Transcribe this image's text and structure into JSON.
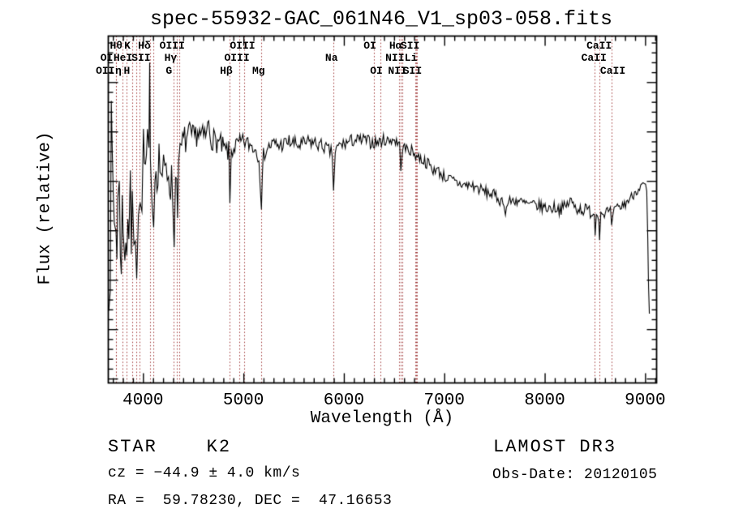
{
  "figure": {
    "title": "spec-55932-GAC_061N46_V1_sp03-058.fits",
    "xlabel": "Wavelength (Å)",
    "ylabel": "Flux (relative)"
  },
  "annotations": {
    "class_label": "STAR    K2",
    "cz_label": "cz = −44.9 ± 4.0 km/s",
    "radec_label": "RA =  59.78230, DEC =  47.16653",
    "survey_label": "LAMOST DR3",
    "obsdate_label": "Obs-Date: 20120105"
  },
  "chart_data": {
    "type": "line",
    "title": "spec-55932-GAC_061N46_V1_sp03-058.fits",
    "xlabel": "Wavelength (Å)",
    "ylabel": "Flux (relative)",
    "xlim": [
      3650,
      9110
    ],
    "ylim": [
      -54,
      297
    ],
    "xticks": [
      4000,
      5000,
      6000,
      7000,
      8000,
      9000
    ],
    "yticks": [
      -50,
      0,
      50,
      100,
      150,
      200,
      250
    ],
    "x_minor_step": 100,
    "y_minor_step": 10,
    "grid": false,
    "legend": false,
    "spectrum_color": "#000000",
    "line_marker_color": "#9e3434",
    "noise_seed": 7,
    "spectral_lines": [
      {
        "label": "Hθ",
        "wavelength": 3798,
        "row": 1,
        "dx": -8
      },
      {
        "label": "K",
        "wavelength": 3933,
        "row": 1,
        "dx": -11
      },
      {
        "label": "Hδ",
        "wavelength": 4102,
        "row": 1,
        "dx": -11
      },
      {
        "label": "OIII",
        "wavelength": 4363,
        "row": 1,
        "dx": -9
      },
      {
        "label": "OIII",
        "wavelength": 5007,
        "row": 1,
        "dx": -2
      },
      {
        "label": "OI",
        "wavelength": 6300,
        "row": 1,
        "dx": -5
      },
      {
        "label": "Hα",
        "wavelength": 6563,
        "row": 1,
        "dx": -6
      },
      {
        "label": "SII",
        "wavelength": 6716,
        "row": 1,
        "dx": -7
      },
      {
        "label": "CaII",
        "wavelength": 8542,
        "row": 1,
        "dx": 0
      },
      {
        "label": "OI",
        "wavelength": 3727,
        "row": 2,
        "dx": -11
      },
      {
        "label": "HeI",
        "wavelength": 3889,
        "row": 2,
        "dx": -11
      },
      {
        "label": "SII",
        "wavelength": 4069,
        "row": 2,
        "dx": -11
      },
      {
        "label": "Hγ",
        "wavelength": 4340,
        "row": 2,
        "dx": -8
      },
      {
        "label": "OIII",
        "wavelength": 4959,
        "row": 2,
        "dx": -3
      },
      {
        "label": "Na",
        "wavelength": 5893,
        "row": 2,
        "dx": -2
      },
      {
        "label": "NII",
        "wavelength": 6548,
        "row": 2,
        "dx": -5
      },
      {
        "label": "Li",
        "wavelength": 6708,
        "row": 2,
        "dx": -5
      },
      {
        "label": "CaII",
        "wavelength": 8498,
        "row": 2,
        "dx": -1
      },
      {
        "label": "OII",
        "wavelength": 3729,
        "row": 3,
        "dx": -13
      },
      {
        "label": "η",
        "wavelength": 3835,
        "row": 3,
        "dx": -10
      },
      {
        "label": "H",
        "wavelength": 3968,
        "row": 3,
        "dx": -16
      },
      {
        "label": "G",
        "wavelength": 4306,
        "row": 3,
        "dx": -6
      },
      {
        "label": "Hβ",
        "wavelength": 4861,
        "row": 3,
        "dx": -4
      },
      {
        "label": "Mg",
        "wavelength": 5175,
        "row": 3,
        "dx": -3
      },
      {
        "label": "OI",
        "wavelength": 6364,
        "row": 3,
        "dx": -5
      },
      {
        "label": "NII",
        "wavelength": 6583,
        "row": 3,
        "dx": -6
      },
      {
        "label": "SII",
        "wavelength": 6731,
        "row": 3,
        "dx": -6
      },
      {
        "label": "CaII",
        "wavelength": 8662,
        "row": 3,
        "dx": 2
      }
    ],
    "continuum": [
      [
        3655,
        125
      ],
      [
        3670,
        130
      ],
      [
        3690,
        140
      ],
      [
        3710,
        125
      ],
      [
        3727,
        105
      ],
      [
        3745,
        125
      ],
      [
        3760,
        115
      ],
      [
        3780,
        105
      ],
      [
        3798,
        95
      ],
      [
        3815,
        108
      ],
      [
        3835,
        100
      ],
      [
        3855,
        115
      ],
      [
        3870,
        108
      ],
      [
        3889,
        100
      ],
      [
        3905,
        118
      ],
      [
        3920,
        125
      ],
      [
        3933,
        85
      ],
      [
        3950,
        135
      ],
      [
        3968,
        105
      ],
      [
        3985,
        155
      ],
      [
        4000,
        170
      ],
      [
        4020,
        158
      ],
      [
        4040,
        168
      ],
      [
        4055,
        175
      ],
      [
        4062,
        240
      ],
      [
        4069,
        150
      ],
      [
        4085,
        160
      ],
      [
        4102,
        125
      ],
      [
        4115,
        160
      ],
      [
        4135,
        170
      ],
      [
        4155,
        172
      ],
      [
        4175,
        162
      ],
      [
        4200,
        152
      ],
      [
        4225,
        158
      ],
      [
        4250,
        162
      ],
      [
        4270,
        150
      ],
      [
        4290,
        142
      ],
      [
        4306,
        98
      ],
      [
        4320,
        148
      ],
      [
        4332,
        160
      ],
      [
        4340,
        132
      ],
      [
        4350,
        162
      ],
      [
        4365,
        172
      ],
      [
        4380,
        185
      ],
      [
        4400,
        190
      ],
      [
        4430,
        193
      ],
      [
        4460,
        196
      ],
      [
        4500,
        193
      ],
      [
        4540,
        200
      ],
      [
        4570,
        196
      ],
      [
        4600,
        194
      ],
      [
        4630,
        198
      ],
      [
        4650,
        210
      ],
      [
        4670,
        195
      ],
      [
        4700,
        192
      ],
      [
        4730,
        190
      ],
      [
        4760,
        188
      ],
      [
        4790,
        184
      ],
      [
        4820,
        180
      ],
      [
        4850,
        180
      ],
      [
        4861,
        128
      ],
      [
        4875,
        180
      ],
      [
        4900,
        185
      ],
      [
        4930,
        186
      ],
      [
        4960,
        188
      ],
      [
        5000,
        190
      ],
      [
        5040,
        188
      ],
      [
        5080,
        186
      ],
      [
        5120,
        182
      ],
      [
        5150,
        176
      ],
      [
        5175,
        128
      ],
      [
        5195,
        176
      ],
      [
        5220,
        182
      ],
      [
        5260,
        186
      ],
      [
        5300,
        188
      ],
      [
        5350,
        186
      ],
      [
        5400,
        188
      ],
      [
        5450,
        190
      ],
      [
        5500,
        188
      ],
      [
        5550,
        186
      ],
      [
        5600,
        188
      ],
      [
        5650,
        190
      ],
      [
        5700,
        189
      ],
      [
        5750,
        187
      ],
      [
        5800,
        185
      ],
      [
        5845,
        181
      ],
      [
        5880,
        178
      ],
      [
        5893,
        140
      ],
      [
        5910,
        180
      ],
      [
        5950,
        186
      ],
      [
        6000,
        188
      ],
      [
        6050,
        190
      ],
      [
        6100,
        192
      ],
      [
        6150,
        191
      ],
      [
        6200,
        192
      ],
      [
        6250,
        190
      ],
      [
        6300,
        189
      ],
      [
        6350,
        190
      ],
      [
        6400,
        192
      ],
      [
        6440,
        191
      ],
      [
        6480,
        193
      ],
      [
        6520,
        190
      ],
      [
        6550,
        186
      ],
      [
        6563,
        166
      ],
      [
        6580,
        184
      ],
      [
        6610,
        183
      ],
      [
        6650,
        182
      ],
      [
        6690,
        179
      ],
      [
        6720,
        176
      ],
      [
        6750,
        174
      ],
      [
        6790,
        171
      ],
      [
        6830,
        168
      ],
      [
        6860,
        166
      ],
      [
        6875,
        158
      ],
      [
        6895,
        164
      ],
      [
        6930,
        161
      ],
      [
        6970,
        157
      ],
      [
        7010,
        154
      ],
      [
        7050,
        152
      ],
      [
        7090,
        150
      ],
      [
        7130,
        148
      ],
      [
        7170,
        147
      ],
      [
        7210,
        146
      ],
      [
        7250,
        146
      ],
      [
        7290,
        145
      ],
      [
        7330,
        143
      ],
      [
        7370,
        141
      ],
      [
        7410,
        139
      ],
      [
        7450,
        138
      ],
      [
        7490,
        136
      ],
      [
        7530,
        133
      ],
      [
        7560,
        130
      ],
      [
        7590,
        131
      ],
      [
        7605,
        116
      ],
      [
        7625,
        128
      ],
      [
        7660,
        130
      ],
      [
        7700,
        131
      ],
      [
        7740,
        130
      ],
      [
        7780,
        128
      ],
      [
        7820,
        127
      ],
      [
        7860,
        126
      ],
      [
        7900,
        126
      ],
      [
        7940,
        125
      ],
      [
        7980,
        124
      ],
      [
        8020,
        123
      ],
      [
        8060,
        123
      ],
      [
        8100,
        124
      ],
      [
        8140,
        122
      ],
      [
        8180,
        123
      ],
      [
        8220,
        126
      ],
      [
        8250,
        131
      ],
      [
        8280,
        126
      ],
      [
        8320,
        123
      ],
      [
        8360,
        122
      ],
      [
        8400,
        121
      ],
      [
        8440,
        120
      ],
      [
        8470,
        119
      ],
      [
        8490,
        117
      ],
      [
        8498,
        100
      ],
      [
        8510,
        117
      ],
      [
        8535,
        116
      ],
      [
        8542,
        97
      ],
      [
        8555,
        117
      ],
      [
        8580,
        119
      ],
      [
        8620,
        119
      ],
      [
        8650,
        118
      ],
      [
        8662,
        100
      ],
      [
        8675,
        118
      ],
      [
        8700,
        121
      ],
      [
        8740,
        123
      ],
      [
        8780,
        126
      ],
      [
        8820,
        130
      ],
      [
        8860,
        134
      ],
      [
        8900,
        140
      ],
      [
        8940,
        144
      ],
      [
        8975,
        146
      ],
      [
        9000,
        145
      ],
      [
        9012,
        140
      ],
      [
        9022,
        90
      ],
      [
        9030,
        40
      ],
      [
        9038,
        16
      ]
    ],
    "noise_profile": [
      [
        3650,
        110
      ],
      [
        3700,
        95
      ],
      [
        3750,
        80
      ],
      [
        3800,
        65
      ],
      [
        3850,
        58
      ],
      [
        3900,
        52
      ],
      [
        3950,
        46
      ],
      [
        4000,
        40
      ],
      [
        4060,
        36
      ],
      [
        4120,
        32
      ],
      [
        4200,
        28
      ],
      [
        4300,
        24
      ],
      [
        4380,
        18
      ],
      [
        4450,
        15
      ],
      [
        4550,
        13
      ],
      [
        4700,
        12
      ],
      [
        4850,
        11
      ],
      [
        5000,
        9
      ],
      [
        5200,
        8
      ],
      [
        5500,
        8
      ],
      [
        5800,
        7
      ],
      [
        6100,
        7
      ],
      [
        6500,
        6
      ],
      [
        7000,
        6
      ],
      [
        7500,
        6
      ],
      [
        8000,
        6
      ],
      [
        8400,
        7
      ],
      [
        8700,
        6
      ],
      [
        8950,
        5
      ],
      [
        9040,
        3
      ]
    ]
  }
}
